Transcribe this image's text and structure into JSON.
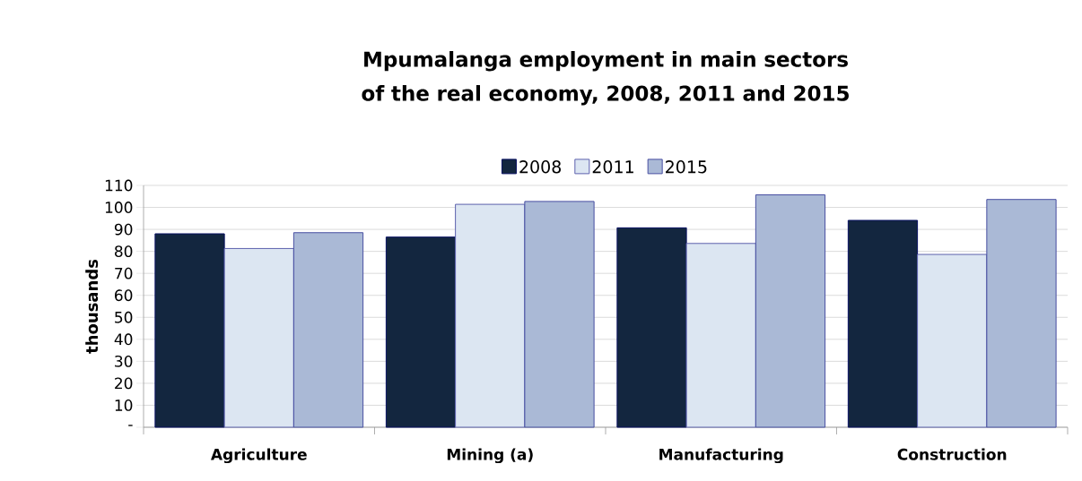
{
  "chart_data": {
    "type": "bar",
    "title": "Mpumalanga employment in main sectors of the real economy, 2008, 2011 and 2015",
    "ylabel": "thousands",
    "categories": [
      "Agriculture",
      "Mining (a)",
      "Manufacturing",
      "Construction"
    ],
    "series": [
      {
        "name": "2008",
        "color": "#13263f",
        "values": [
          88,
          86.5,
          90.7,
          94.1
        ]
      },
      {
        "name": "2011",
        "color": "#dce6f2",
        "values": [
          81.3,
          101.4,
          83.6,
          78.6
        ]
      },
      {
        "name": "2015",
        "color": "#aab9d6",
        "values": [
          88.5,
          102.7,
          105.7,
          103.6
        ]
      }
    ],
    "ylim": [
      0,
      110
    ],
    "yticks": [
      {
        "value": 0,
        "label": "-"
      },
      10,
      20,
      30,
      40,
      50,
      60,
      70,
      80,
      90,
      100,
      110
    ],
    "grid": "y",
    "legend": "top"
  }
}
